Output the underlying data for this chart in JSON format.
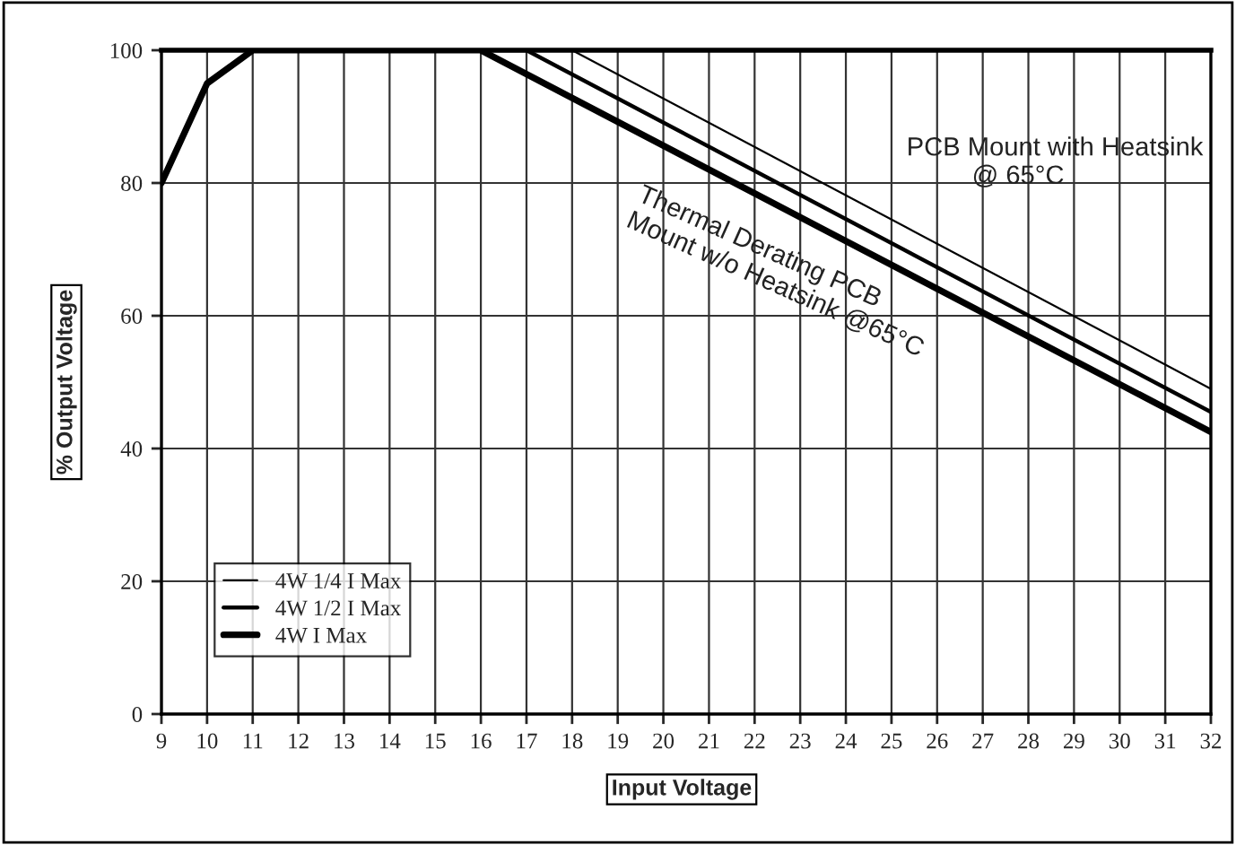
{
  "chart_data": {
    "type": "line",
    "xlabel": "Input Voltage",
    "ylabel": "% Output Voltage",
    "series": [
      {
        "name": "4W 1/4 I Max",
        "color": "#000000",
        "x": [
          9,
          10,
          11,
          18,
          32
        ],
        "values": [
          80,
          95,
          100,
          100,
          49
        ]
      },
      {
        "name": "4W 1/2 I Max",
        "color": "#000000",
        "x": [
          9,
          10,
          11,
          17,
          32
        ],
        "values": [
          80,
          95,
          100,
          100,
          45.5
        ]
      },
      {
        "name": "4W I Max",
        "color": "#000000",
        "x": [
          9,
          10,
          11,
          16,
          32
        ],
        "values": [
          80,
          95,
          100,
          100,
          42.5
        ]
      }
    ],
    "xlim": [
      9,
      32
    ],
    "xticks": [
      9,
      10,
      11,
      12,
      13,
      14,
      15,
      16,
      17,
      18,
      19,
      20,
      21,
      22,
      23,
      24,
      25,
      26,
      27,
      28,
      29,
      30,
      31,
      32
    ],
    "ylim": [
      0,
      100
    ],
    "yticks": [
      0,
      20,
      40,
      60,
      80,
      100
    ],
    "grid": true,
    "legend": "bottom left",
    "line_style": "solid",
    "marker": "none",
    "annotations": [
      "PCB Mount with Heatsink\n         @ 65°C",
      "Thermal Derating PCB\nMount w/o Heatsink @65°C"
    ]
  }
}
